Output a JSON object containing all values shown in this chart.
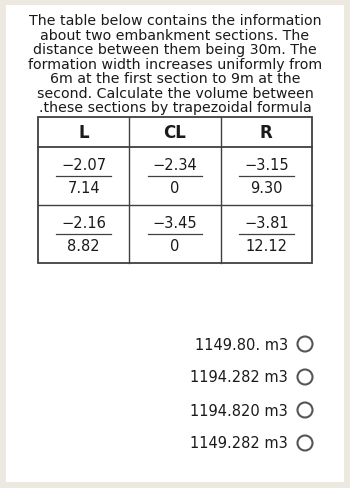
{
  "title_lines": [
    "The table below contains the information",
    "about two embankment sections. The",
    "distance between them being 30m. The",
    "formation width increases uniformly from",
    "6m at the first section to 9m at the",
    "second. Calculate the volume between",
    ".these sections by trapezoidal formula"
  ],
  "table_headers": [
    "L",
    "CL",
    "R"
  ],
  "table_rows": [
    [
      [
        "−2.07",
        "7.14"
      ],
      [
        "−2.34",
        "0"
      ],
      [
        "−3.15",
        "9.30"
      ]
    ],
    [
      [
        "−2.16",
        "8.82"
      ],
      [
        "−3.45",
        "0"
      ],
      [
        "−3.81",
        "12.12"
      ]
    ]
  ],
  "options": [
    "1149.80. m3",
    "1194.282 m3",
    "1194.820 m3",
    "1149.282 m3"
  ],
  "bg_color": "#ede8e0",
  "card_color": "#ffffff",
  "text_color": "#1a1a1a",
  "title_fontsize": 10.2,
  "table_fontsize": 10.5,
  "option_fontsize": 10.5,
  "header_fontsize": 12.0,
  "fig_width": 3.5,
  "fig_height": 4.89,
  "dpi": 100
}
